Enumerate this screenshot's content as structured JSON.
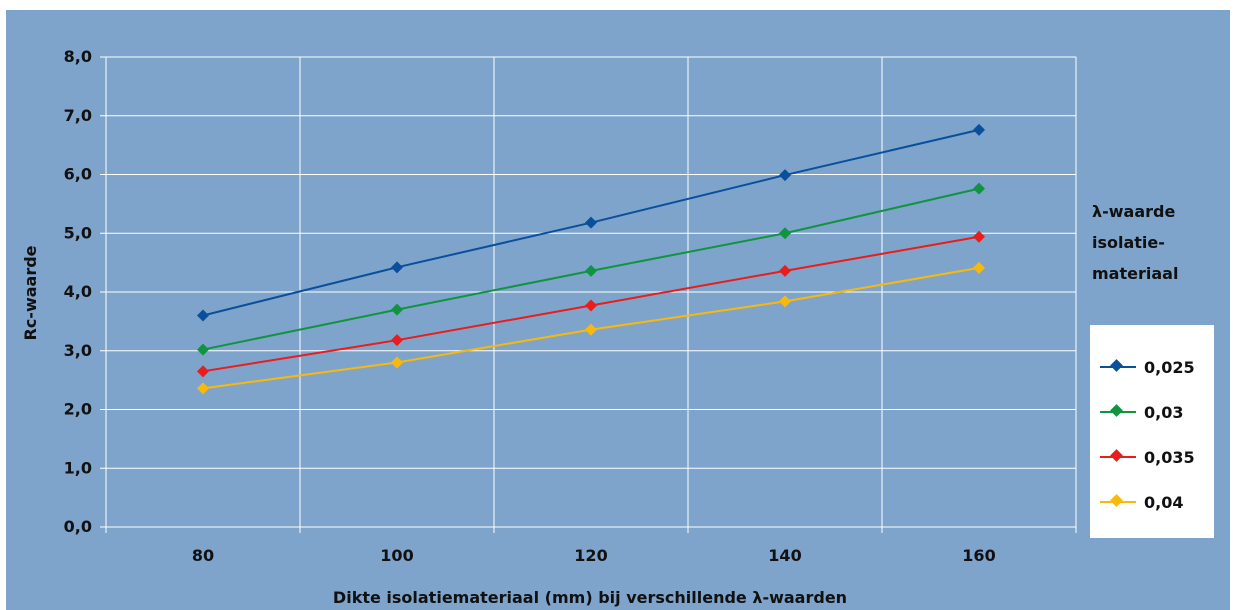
{
  "chart_data": {
    "type": "line",
    "title": "",
    "xlabel": "Dikte isolatiemateriaal (mm) bij verschillende λ-waarden",
    "ylabel": "Rc-waarde",
    "x": [
      80,
      100,
      120,
      140,
      160
    ],
    "x_tick_labels": [
      "80",
      "100",
      "120",
      "140",
      "160"
    ],
    "y_tick_labels": [
      "0,0",
      "1,0",
      "2,0",
      "3,0",
      "4,0",
      "5,0",
      "6,0",
      "7,0",
      "8,0"
    ],
    "ylim": [
      0,
      8
    ],
    "grid": true,
    "legend_title": [
      "λ-waarde",
      "isolatie-",
      "materiaal"
    ],
    "legend_position": "right",
    "series": [
      {
        "name": "0,025",
        "color": "#0a4f9c",
        "values": [
          3.6,
          4.42,
          5.18,
          5.99,
          6.76
        ]
      },
      {
        "name": "0,03",
        "color": "#119440",
        "values": [
          3.02,
          3.7,
          4.36,
          5.0,
          5.76
        ]
      },
      {
        "name": "0,035",
        "color": "#ea1c1c",
        "values": [
          2.65,
          3.18,
          3.77,
          4.36,
          4.94
        ]
      },
      {
        "name": "0,04",
        "color": "#f8b90c",
        "values": [
          2.36,
          2.8,
          3.36,
          3.84,
          4.41
        ]
      }
    ],
    "colors": {
      "background": "#7ea4cb",
      "grid": "#ffffff"
    }
  }
}
